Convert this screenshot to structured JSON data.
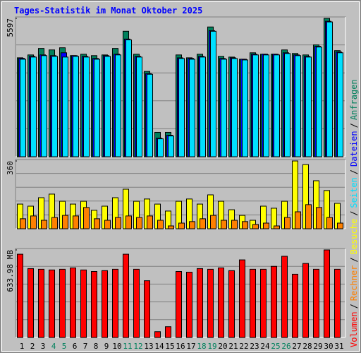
{
  "title": "Tages-Statistik im Monat Oktober 2025",
  "legend_separator": "/",
  "chart_data": [
    {
      "type": "bar",
      "series": [
        {
          "name": "Anfragen",
          "color": "#00805c",
          "values": [
            4002,
            4118,
            4379,
            4321,
            4408,
            4089,
            4147,
            4089,
            4118,
            4379,
            5075,
            4147,
            3451,
            986,
            986,
            4118,
            4002,
            4147,
            5249,
            4060,
            4031,
            3944,
            4205,
            4147,
            4147,
            4321,
            4176,
            4118,
            4524,
            5597,
            4292
          ]
        },
        {
          "name": "Dateien",
          "color": "#0000ff",
          "values": [
            3980,
            4060,
            4120,
            4090,
            4205,
            4090,
            4060,
            3975,
            4090,
            4150,
            4760,
            4060,
            3365,
            750,
            870,
            4000,
            3975,
            4060,
            5100,
            3975,
            4000,
            3945,
            4150,
            4150,
            4150,
            4205,
            4120,
            4060,
            4465,
            5480,
            4235
          ]
        },
        {
          "name": "Seiten",
          "color": "#00e0ff",
          "values": [
            3944,
            4031,
            4089,
            4060,
            4031,
            4060,
            4031,
            3944,
            4060,
            4118,
            4727,
            4031,
            3335,
            725,
            841,
            3973,
            3944,
            4031,
            5075,
            3944,
            3973,
            3915,
            4118,
            4118,
            4118,
            4176,
            4089,
            4031,
            4437,
            5452,
            4205
          ]
        }
      ],
      "ylim": [
        0,
        5597
      ],
      "yticks": [
        5597
      ]
    },
    {
      "type": "bar",
      "series": [
        {
          "name": "Besuche",
          "color": "#ffff00",
          "values": [
            131,
            120,
            165,
            184,
            146,
            131,
            146,
            98,
            120,
            165,
            210,
            146,
            158,
            131,
            94,
            146,
            158,
            131,
            180,
            146,
            101,
            71,
            45,
            120,
            109,
            146,
            360,
            341,
            255,
            203,
            135
          ]
        },
        {
          "name": "Rechner",
          "color": "#ff8000",
          "values": [
            53,
            68,
            45,
            60,
            71,
            68,
            113,
            53,
            45,
            60,
            68,
            60,
            68,
            45,
            15,
            30,
            38,
            53,
            71,
            45,
            45,
            38,
            23,
            30,
            15,
            60,
            90,
            128,
            113,
            60,
            30
          ]
        }
      ],
      "ylim": [
        0,
        360
      ],
      "yticks": [
        360
      ]
    },
    {
      "type": "bar",
      "categories": [
        "1",
        "2",
        "3",
        "4",
        "5",
        "6",
        "7",
        "8",
        "9",
        "10",
        "11",
        "12",
        "13",
        "14",
        "15",
        "16",
        "17",
        "18",
        "19",
        "20",
        "21",
        "22",
        "23",
        "24",
        "25",
        "26",
        "27",
        "28",
        "29",
        "30",
        "31"
      ],
      "category_colors": [
        "#000000",
        "#000000",
        "#000000",
        "#00805c",
        "#00805c",
        "#000000",
        "#000000",
        "#000000",
        "#000000",
        "#000000",
        "#00805c",
        "#00805c",
        "#000000",
        "#000000",
        "#000000",
        "#000000",
        "#000000",
        "#00805c",
        "#00805c",
        "#000000",
        "#000000",
        "#000000",
        "#000000",
        "#000000",
        "#00805c",
        "#00805c",
        "#000000",
        "#000000",
        "#000000",
        "#000000",
        "#000000"
      ],
      "series": [
        {
          "name": "Volumen",
          "color": "#ff0000",
          "values": [
            603,
            499,
            494,
            489,
            494,
            504,
            489,
            478,
            484,
            494,
            603,
            494,
            411,
            42,
            78,
            478,
            473,
            499,
            494,
            504,
            484,
            562,
            494,
            494,
            515,
            588,
            458,
            536,
            494,
            634,
            494
          ]
        }
      ],
      "ylim": [
        0,
        633.98
      ],
      "yticks": [
        {
          "value": 633.98,
          "label": "633.98 MB"
        }
      ]
    }
  ]
}
